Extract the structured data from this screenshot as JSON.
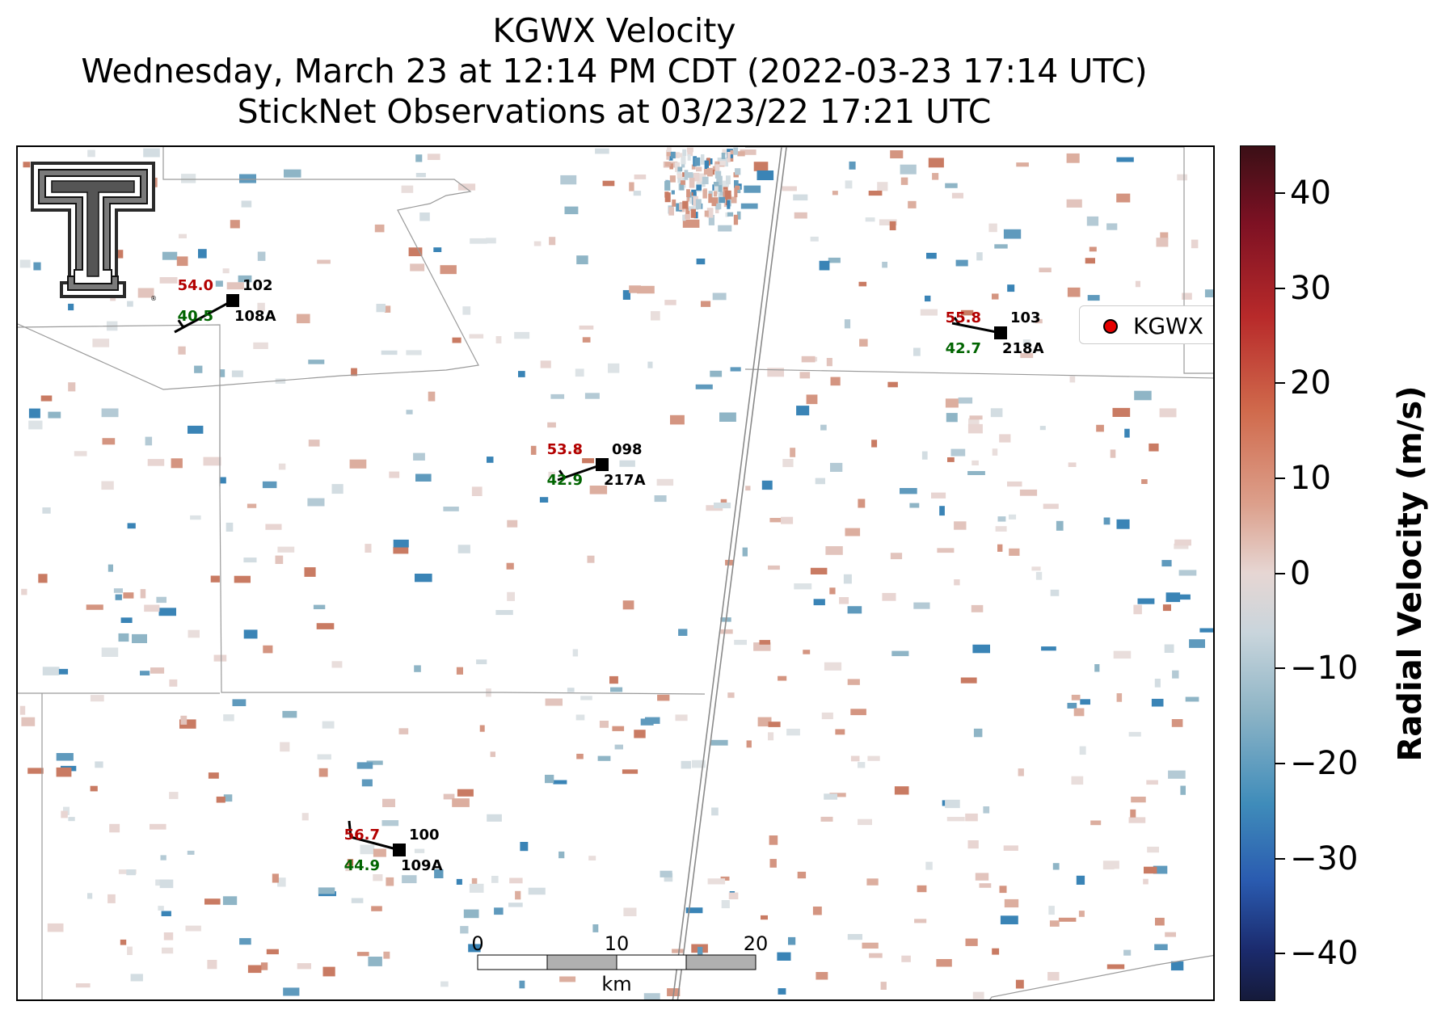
{
  "title": {
    "line1": "KGWX Velocity",
    "line2": "Wednesday, March 23 at 12:14 PM CDT (2022-03-23 17:14 UTC)",
    "line3": "StickNet Observations at 03/23/22 17:21 UTC"
  },
  "legend": {
    "label": "KGWX",
    "marker_color": "#e60000",
    "marker_icon": "red-dot-icon"
  },
  "colorbar": {
    "title": "Radial Velocity (m/s)",
    "range": [
      -45,
      45
    ],
    "ticks": [
      "40",
      "30",
      "20",
      "10",
      "0",
      "−10",
      "−20",
      "−30",
      "−40"
    ],
    "tick_values": [
      40,
      30,
      20,
      10,
      0,
      -10,
      -20,
      -30,
      -40
    ],
    "colormap": "red-white-blue diverging"
  },
  "scalebar": {
    "ticks": [
      "0",
      "10",
      "20"
    ],
    "unit": "km"
  },
  "logo": {
    "icon": "texas-tech-double-t-logo-icon"
  },
  "stations": [
    {
      "id": "108A",
      "probe": "102",
      "temperature": "54.0",
      "dewpoint": "40.5",
      "temp_color": "#b30000",
      "dew_color": "#006400"
    },
    {
      "id": "218A",
      "probe": "103",
      "temperature": "55.8",
      "dewpoint": "42.7",
      "temp_color": "#b30000",
      "dew_color": "#006400"
    },
    {
      "id": "217A",
      "probe": "098",
      "temperature": "53.8",
      "dewpoint": "42.9",
      "temp_color": "#b30000",
      "dew_color": "#006400"
    },
    {
      "id": "109A",
      "probe": "100",
      "temperature": "56.7",
      "dewpoint": "44.9",
      "temp_color": "#b30000",
      "dew_color": "#006400"
    }
  ]
}
